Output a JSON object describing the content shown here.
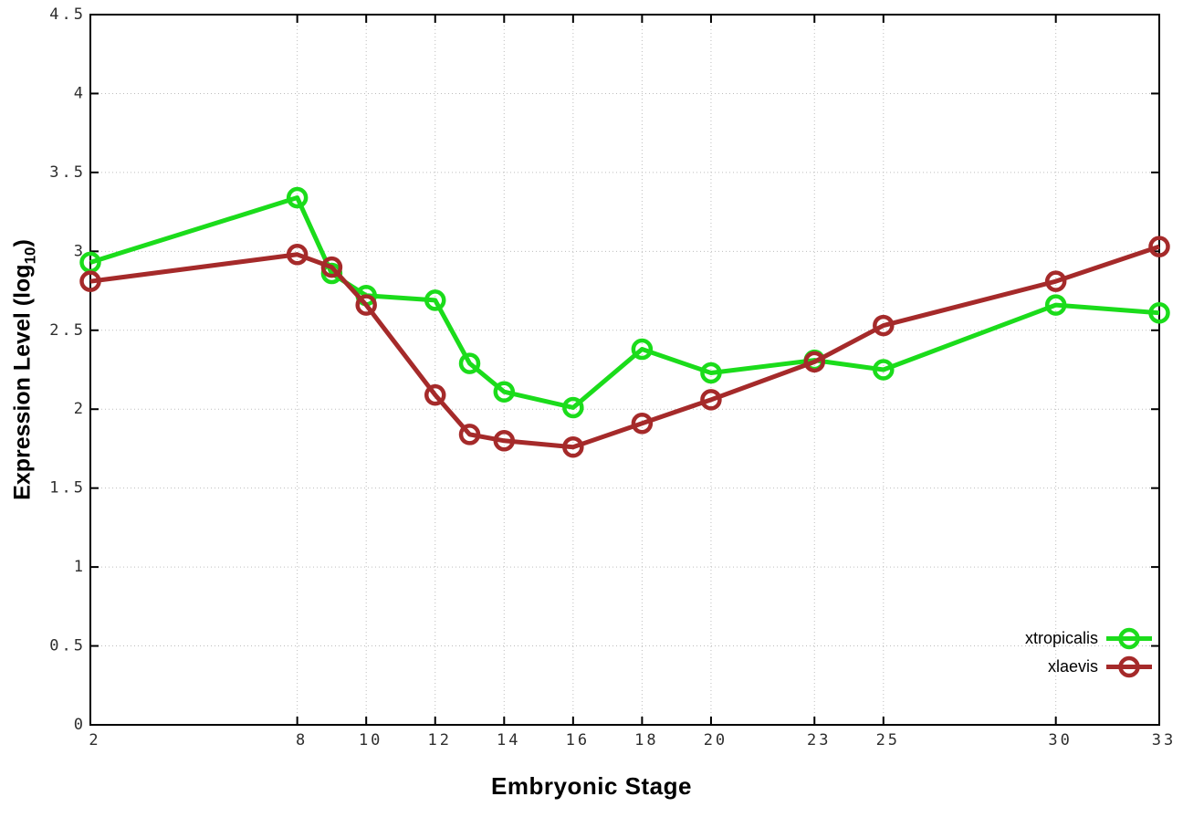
{
  "page": {
    "background": "#ffffff",
    "grid_color": "#bdbdbd",
    "border_color": "#000000",
    "tick_label_color": "#2e2e2e"
  },
  "chart_data": {
    "type": "line",
    "title": "",
    "xlabel": "Embryonic Stage",
    "ylabel": "Expression Level (log_10)",
    "ylabel_display": {
      "main": "Expression Level (log",
      "sub": "10",
      "suffix": ")"
    },
    "x": [
      2,
      8,
      9,
      10,
      12,
      13,
      14,
      16,
      18,
      20,
      23,
      25,
      30,
      33
    ],
    "series": [
      {
        "name": "xtropicalis",
        "color": "#1bdc1b",
        "values": [
          2.93,
          3.34,
          2.86,
          2.72,
          2.69,
          2.29,
          2.11,
          2.01,
          2.38,
          2.23,
          2.31,
          2.25,
          2.66,
          2.61
        ]
      },
      {
        "name": "xlaevis",
        "color": "#a52a2a",
        "values": [
          2.81,
          2.98,
          2.9,
          2.66,
          2.09,
          1.84,
          1.8,
          1.76,
          1.91,
          2.06,
          2.3,
          2.53,
          2.81,
          3.03
        ]
      }
    ],
    "xlim": [
      2,
      33
    ],
    "ylim": [
      0,
      4.5
    ],
    "xticks": [
      2,
      8,
      10,
      12,
      14,
      16,
      18,
      20,
      23,
      25,
      30,
      33
    ],
    "yticks": [
      0,
      0.5,
      1,
      1.5,
      2,
      2.5,
      3,
      3.5,
      4,
      4.5
    ],
    "ytick_labels": [
      "0",
      "0.5",
      "1",
      "1.5",
      "2",
      "2.5",
      "3",
      "3.5",
      "4",
      "4.5"
    ],
    "grid": true,
    "grid_style": "dotted",
    "legend_position": "bottom-right",
    "marker": "open-circle"
  }
}
